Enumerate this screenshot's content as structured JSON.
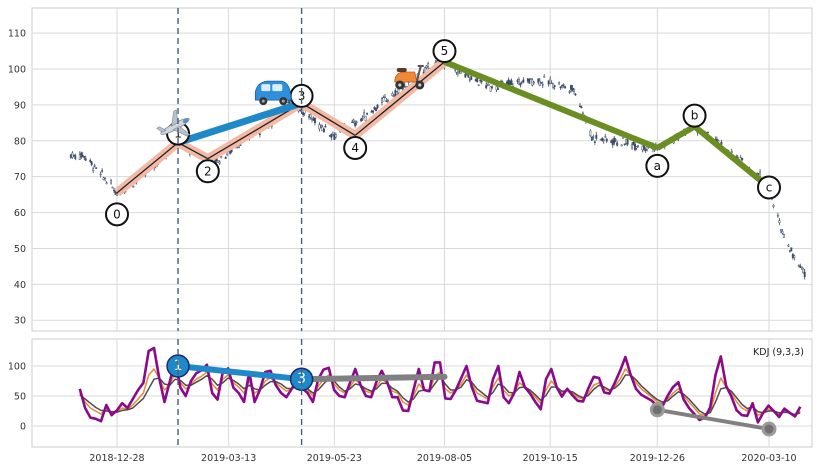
{
  "chart_data": [
    {
      "type": "candlestick",
      "panel": "price",
      "ylim": [
        27,
        117
      ],
      "y_ticks": [
        30,
        40,
        50,
        60,
        70,
        80,
        90,
        100,
        110
      ],
      "x_ticks": [
        "2018-12-28",
        "2019-03-13",
        "2019-05-23",
        "2019-08-05",
        "2019-10-15",
        "2019-12-26",
        "2020-03-10"
      ],
      "price_path": [
        {
          "date": "2018-11-27",
          "close": 76
        },
        {
          "date": "2018-12-06",
          "close": 76
        },
        {
          "date": "2018-12-14",
          "close": 72
        },
        {
          "date": "2018-12-21",
          "close": 69
        },
        {
          "date": "2018-12-28",
          "close": 65.5
        },
        {
          "date": "2019-01-10",
          "close": 69
        },
        {
          "date": "2019-01-24",
          "close": 74
        },
        {
          "date": "2019-02-07",
          "close": 79.5
        },
        {
          "date": "2019-02-21",
          "close": 76
        },
        {
          "date": "2019-03-06",
          "close": 74.5
        },
        {
          "date": "2019-03-22",
          "close": 80
        },
        {
          "date": "2019-04-10",
          "close": 85
        },
        {
          "date": "2019-04-25",
          "close": 91
        },
        {
          "date": "2019-05-08",
          "close": 86
        },
        {
          "date": "2019-05-23",
          "close": 81.5
        },
        {
          "date": "2019-06-10",
          "close": 86
        },
        {
          "date": "2019-06-25",
          "close": 91
        },
        {
          "date": "2019-07-10",
          "close": 95
        },
        {
          "date": "2019-07-25",
          "close": 100
        },
        {
          "date": "2019-08-05",
          "close": 102
        },
        {
          "date": "2019-08-20",
          "close": 98
        },
        {
          "date": "2019-09-05",
          "close": 95
        },
        {
          "date": "2019-09-20",
          "close": 96
        },
        {
          "date": "2019-10-04",
          "close": 97
        },
        {
          "date": "2019-10-18",
          "close": 96
        },
        {
          "date": "2019-11-01",
          "close": 94
        },
        {
          "date": "2019-11-12",
          "close": 81
        },
        {
          "date": "2019-11-27",
          "close": 80
        },
        {
          "date": "2019-12-12",
          "close": 79
        },
        {
          "date": "2019-12-26",
          "close": 78
        },
        {
          "date": "2020-01-09",
          "close": 81
        },
        {
          "date": "2020-01-20",
          "close": 84
        },
        {
          "date": "2020-02-05",
          "close": 79
        },
        {
          "date": "2020-02-20",
          "close": 74
        },
        {
          "date": "2020-03-05",
          "close": 70
        },
        {
          "date": "2020-03-10",
          "close": 66
        },
        {
          "date": "2020-03-17",
          "close": 57
        },
        {
          "date": "2020-03-24",
          "close": 50
        },
        {
          "date": "2020-04-03",
          "close": 43
        }
      ],
      "waves": [
        {
          "label": "0",
          "date": "2018-12-28",
          "price": 65.5,
          "label_price": 59.5
        },
        {
          "label": "1",
          "date": "2019-02-07",
          "price": 79.5,
          "label_price": 82
        },
        {
          "label": "2",
          "date": "2019-02-27",
          "price": 75,
          "label_price": 71.5
        },
        {
          "label": "3",
          "date": "2019-05-01",
          "price": 90.5,
          "label_price": 92.5
        },
        {
          "label": "4",
          "date": "2019-06-06",
          "price": 81.5,
          "label_price": 78
        },
        {
          "label": "5",
          "date": "2019-08-05",
          "price": 102,
          "label_price": 105
        },
        {
          "label": "a",
          "date": "2019-12-26",
          "price": 78,
          "label_price": 73
        },
        {
          "label": "b",
          "date": "2020-01-20",
          "price": 84,
          "label_price": 87
        },
        {
          "label": "c",
          "date": "2020-03-10",
          "price": 67,
          "label_price": 67
        }
      ],
      "impulse_color": "#F4B9A4",
      "correction_color": "#6B8E23",
      "extension_color": "#1E88C8",
      "extension_line": [
        {
          "date": "2019-02-07",
          "price": 79.5
        },
        {
          "date": "2019-05-01",
          "price": 90.5
        }
      ],
      "markers": [
        {
          "icon": "airplane-icon",
          "date": "2019-02-05",
          "price": 84
        },
        {
          "icon": "car-icon",
          "date": "2019-04-12",
          "price": 93
        },
        {
          "icon": "scooter-icon",
          "date": "2019-07-12",
          "price": 97.5
        }
      ],
      "vlines": [
        "2019-02-07",
        "2019-05-01"
      ]
    },
    {
      "type": "line",
      "panel": "indicator",
      "indicator_label": "KDJ (9,3,3)",
      "ylim": [
        -35,
        145
      ],
      "y_ticks": [
        0,
        50,
        100
      ],
      "series_colors": {
        "K": "#E8893A",
        "D": "#4D4D4D",
        "J": "#8B0A8B"
      },
      "series": [
        {
          "key": "K",
          "values": [
            55,
            40,
            30,
            25,
            20,
            28,
            22,
            24,
            30,
            28,
            35,
            45,
            55,
            85,
            95,
            80,
            60,
            70,
            88,
            72,
            62,
            70,
            78,
            83,
            90,
            70,
            60,
            78,
            85,
            72,
            65,
            55,
            75,
            55,
            60,
            75,
            80,
            72,
            65,
            58,
            62,
            70,
            65,
            60,
            50,
            66,
            78,
            85,
            70,
            60,
            55,
            65,
            78,
            68,
            58,
            55,
            66,
            78,
            72,
            58,
            55,
            40,
            35,
            50,
            70,
            60,
            58,
            82,
            90,
            62,
            55,
            60,
            70,
            85,
            70,
            55,
            50,
            45,
            65,
            80,
            60,
            50,
            55,
            72,
            65,
            58,
            48,
            38,
            60,
            75,
            65,
            55,
            60,
            55,
            48,
            45,
            55,
            68,
            72,
            62,
            58,
            66,
            78,
            95,
            85,
            72,
            62,
            55,
            48,
            40,
            38,
            45,
            55,
            62,
            50,
            40,
            30,
            20,
            18,
            25,
            55,
            80,
            65,
            55,
            40,
            30,
            25,
            35,
            18,
            22,
            28,
            25,
            20,
            25,
            22,
            18,
            25
          ]
        },
        {
          "key": "D",
          "values": [
            52,
            45,
            38,
            31,
            26,
            25,
            24,
            23,
            26,
            27,
            30,
            38,
            46,
            62,
            78,
            80,
            70,
            68,
            78,
            76,
            68,
            68,
            73,
            78,
            84,
            78,
            68,
            72,
            80,
            76,
            70,
            62,
            68,
            62,
            60,
            68,
            74,
            74,
            70,
            63,
            62,
            67,
            66,
            62,
            55,
            60,
            70,
            79,
            75,
            65,
            58,
            62,
            70,
            68,
            62,
            58,
            62,
            71,
            71,
            63,
            58,
            47,
            40,
            45,
            58,
            60,
            58,
            70,
            82,
            70,
            60,
            60,
            65,
            77,
            73,
            62,
            55,
            48,
            56,
            70,
            66,
            56,
            55,
            64,
            65,
            60,
            52,
            43,
            51,
            65,
            65,
            58,
            59,
            57,
            51,
            47,
            51,
            61,
            68,
            65,
            60,
            63,
            71,
            85,
            85,
            77,
            67,
            59,
            51,
            44,
            40,
            42,
            50,
            57,
            53,
            45,
            35,
            25,
            20,
            22,
            40,
            62,
            64,
            58,
            47,
            36,
            29,
            32,
            24,
            22,
            25,
            25,
            22,
            23,
            22,
            19,
            22
          ]
        },
        {
          "key": "J",
          "values": [
            62,
            30,
            14,
            12,
            8,
            35,
            18,
            26,
            38,
            30,
            45,
            60,
            72,
            125,
            130,
            80,
            40,
            74,
            108,
            64,
            50,
            75,
            88,
            93,
            102,
            55,
            44,
            90,
            96,
            64,
            55,
            40,
            90,
            40,
            60,
            90,
            92,
            68,
            55,
            48,
            62,
            77,
            63,
            55,
            40,
            78,
            94,
            97,
            60,
            50,
            48,
            72,
            95,
            68,
            50,
            48,
            74,
            92,
            74,
            48,
            48,
            26,
            25,
            60,
            95,
            60,
            58,
            106,
            106,
            46,
            45,
            60,
            80,
            100,
            65,
            42,
            40,
            38,
            78,
            100,
            48,
            38,
            55,
            90,
            65,
            54,
            40,
            28,
            78,
            95,
            65,
            49,
            62,
            51,
            42,
            41,
            63,
            82,
            80,
            56,
            54,
            72,
            92,
            115,
            85,
            62,
            52,
            47,
            42,
            33,
            33,
            51,
            65,
            73,
            44,
            30,
            20,
            10,
            14,
            31,
            85,
            116,
            67,
            49,
            26,
            18,
            17,
            38,
            6,
            22,
            34,
            25,
            15,
            29,
            22,
            16,
            32
          ]
        }
      ],
      "extension_color": "#1E88C8",
      "connector_color": "#808080",
      "points": [
        {
          "label": "1",
          "date": "2019-02-07",
          "value": 100,
          "color": "#1E88C8"
        },
        {
          "label": "3",
          "date": "2019-05-01",
          "value": 78,
          "color": "#1E88C8"
        },
        {
          "label": "",
          "date": "2019-08-05",
          "value": 82,
          "color": "#808080"
        },
        {
          "label": "",
          "date": "2019-12-26",
          "value": 27,
          "color": "#808080"
        },
        {
          "label": "",
          "date": "2020-03-10",
          "value": -5,
          "color": "#808080"
        }
      ]
    }
  ]
}
